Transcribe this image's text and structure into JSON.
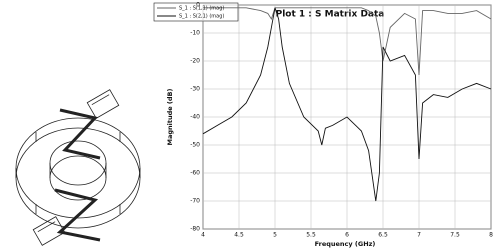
{
  "chart_data": {
    "type": "line",
    "title": "Plot 1 : S Matrix Data",
    "x_label": "Frequency (GHz)",
    "y_label": "Magnitude (dB)",
    "x": [
      4.0,
      4.2,
      4.4,
      4.6,
      4.8,
      4.9,
      4.95,
      5.0,
      5.05,
      5.1,
      5.2,
      5.4,
      5.6,
      5.65,
      5.7,
      5.8,
      6.0,
      6.2,
      6.3,
      6.4,
      6.45,
      6.5,
      6.6,
      6.8,
      6.95,
      7.0,
      7.05,
      7.2,
      7.4,
      7.6,
      7.8,
      8.0
    ],
    "series": [
      {
        "name": "S_1 : S(1,1) (mag)",
        "color": "#666666",
        "values": [
          -1,
          -1,
          -1,
          -1,
          -2,
          -3,
          -5,
          -1,
          -1,
          -1,
          -1,
          -1,
          -1,
          -1,
          -1,
          -1,
          -1,
          -1,
          -2,
          -4,
          -10,
          -20,
          -8,
          -3,
          -5,
          -25,
          -2,
          -2,
          -3,
          -3,
          -2,
          -5
        ]
      },
      {
        "name": "S_1 : S(2,1) (mag)",
        "color": "#111111",
        "values": [
          -46,
          -43,
          -40,
          -35,
          -25,
          -15,
          -8,
          -1,
          -5,
          -15,
          -28,
          -40,
          -45,
          -50,
          -44,
          -43,
          -40,
          -45,
          -52,
          -70,
          -60,
          -15,
          -20,
          -18,
          -25,
          -55,
          -35,
          -32,
          -33,
          -30,
          -28,
          -30
        ]
      }
    ],
    "xlim": [
      4,
      8
    ],
    "xticks": [
      4,
      4.5,
      5,
      5.5,
      6,
      6.5,
      7,
      7.5,
      8
    ],
    "ylim": [
      -80,
      0
    ],
    "yticks": [
      0,
      -10,
      -20,
      -30,
      -40,
      -50,
      -60,
      -70,
      -80
    ],
    "grid": true
  }
}
